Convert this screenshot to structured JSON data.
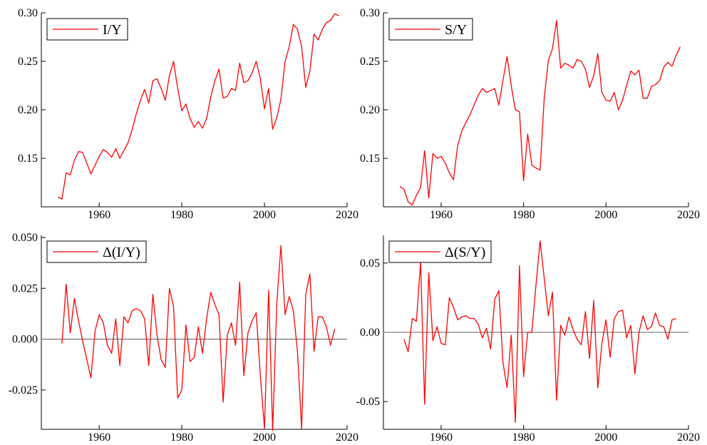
{
  "line_color": "#ff0000",
  "zero_line_color": "#7f7f7f",
  "chart_data": [
    {
      "type": "line",
      "series": [
        {
          "name": "I/Y",
          "x": [
            1950,
            1951,
            1952,
            1953,
            1954,
            1955,
            1956,
            1957,
            1958,
            1959,
            1960,
            1961,
            1962,
            1963,
            1964,
            1965,
            1966,
            1967,
            1968,
            1969,
            1970,
            1971,
            1972,
            1973,
            1974,
            1975,
            1976,
            1977,
            1978,
            1979,
            1980,
            1981,
            1982,
            1983,
            1984,
            1985,
            1986,
            1987,
            1988,
            1989,
            1990,
            1991,
            1992,
            1993,
            1994,
            1995,
            1996,
            1997,
            1998,
            1999,
            2000,
            2001,
            2002,
            2003,
            2004,
            2005,
            2006,
            2007,
            2008,
            2009,
            2010,
            2011,
            2012,
            2013,
            2014,
            2015,
            2016,
            2017,
            2018
          ],
          "y": [
            0.11,
            0.108,
            0.135,
            0.133,
            0.148,
            0.157,
            0.156,
            0.145,
            0.134,
            0.143,
            0.152,
            0.159,
            0.156,
            0.151,
            0.16,
            0.15,
            0.158,
            0.166,
            0.18,
            0.196,
            0.21,
            0.221,
            0.207,
            0.23,
            0.232,
            0.222,
            0.21,
            0.235,
            0.25,
            0.222,
            0.199,
            0.206,
            0.191,
            0.182,
            0.188,
            0.181,
            0.191,
            0.213,
            0.23,
            0.242,
            0.212,
            0.214,
            0.222,
            0.22,
            0.248,
            0.228,
            0.23,
            0.238,
            0.25,
            0.232,
            0.201,
            0.222,
            0.18,
            0.192,
            0.211,
            0.25,
            0.265,
            0.288,
            0.283,
            0.265,
            0.223,
            0.24,
            0.278,
            0.272,
            0.283,
            0.29,
            0.292,
            0.299,
            0.297
          ]
        }
      ],
      "xticks": [
        "1960",
        "1980",
        "2000",
        "2020"
      ],
      "yticks": [
        "0.15",
        "0.20",
        "0.25",
        "0.30"
      ],
      "xlim": [
        1946,
        2020
      ],
      "ylim": [
        0.1,
        0.3
      ],
      "legend": "top-left",
      "zero_line": false
    },
    {
      "type": "line",
      "series": [
        {
          "name": "S/Y",
          "x": [
            1950,
            1951,
            1952,
            1953,
            1954,
            1955,
            1956,
            1957,
            1958,
            1959,
            1960,
            1961,
            1962,
            1963,
            1964,
            1965,
            1966,
            1967,
            1968,
            1969,
            1970,
            1971,
            1972,
            1973,
            1974,
            1975,
            1976,
            1977,
            1978,
            1979,
            1980,
            1981,
            1982,
            1983,
            1984,
            1985,
            1986,
            1987,
            1988,
            1989,
            1990,
            1991,
            1992,
            1993,
            1994,
            1995,
            1996,
            1997,
            1998,
            1999,
            2000,
            2001,
            2002,
            2003,
            2004,
            2005,
            2006,
            2007,
            2008,
            2009,
            2010,
            2011,
            2012,
            2013,
            2014,
            2015,
            2016,
            2017,
            2018
          ],
          "y": [
            0.121,
            0.118,
            0.105,
            0.102,
            0.112,
            0.12,
            0.158,
            0.109,
            0.155,
            0.15,
            0.152,
            0.145,
            0.135,
            0.128,
            0.163,
            0.178,
            0.187,
            0.195,
            0.205,
            0.215,
            0.222,
            0.218,
            0.22,
            0.222,
            0.205,
            0.23,
            0.255,
            0.225,
            0.2,
            0.198,
            0.127,
            0.175,
            0.143,
            0.14,
            0.138,
            0.212,
            0.251,
            0.263,
            0.292,
            0.243,
            0.248,
            0.246,
            0.243,
            0.252,
            0.25,
            0.242,
            0.223,
            0.235,
            0.258,
            0.218,
            0.21,
            0.209,
            0.218,
            0.2,
            0.21,
            0.225,
            0.24,
            0.236,
            0.241,
            0.212,
            0.212,
            0.224,
            0.226,
            0.23,
            0.244,
            0.249,
            0.245,
            0.256,
            0.265
          ]
        }
      ],
      "xticks": [
        "1960",
        "1980",
        "2000",
        "2020"
      ],
      "yticks": [
        "0.15",
        "0.20",
        "0.25",
        "0.30"
      ],
      "xlim": [
        1946,
        2020
      ],
      "ylim": [
        0.1,
        0.3
      ],
      "legend": "top-left",
      "zero_line": false
    },
    {
      "type": "line",
      "series": [
        {
          "name": "Δ(I/Y)",
          "x": [
            1951,
            1952,
            1953,
            1954,
            1955,
            1956,
            1957,
            1958,
            1959,
            1960,
            1961,
            1962,
            1963,
            1964,
            1965,
            1966,
            1967,
            1968,
            1969,
            1970,
            1971,
            1972,
            1973,
            1974,
            1975,
            1976,
            1977,
            1978,
            1979,
            1980,
            1981,
            1982,
            1983,
            1984,
            1985,
            1986,
            1987,
            1988,
            1989,
            1990,
            1991,
            1992,
            1993,
            1994,
            1995,
            1996,
            1997,
            1998,
            1999,
            2000,
            2001,
            2002,
            2003,
            2004,
            2005,
            2006,
            2007,
            2008,
            2009,
            2010,
            2011,
            2012,
            2013,
            2014,
            2015,
            2016,
            2017
          ],
          "y": [
            -0.002,
            0.027,
            0.003,
            0.02,
            0.009,
            -0.001,
            -0.01,
            -0.019,
            0.004,
            0.012,
            0.008,
            -0.003,
            -0.007,
            0.01,
            -0.013,
            0.011,
            0.008,
            0.014,
            0.015,
            0.014,
            0.01,
            -0.013,
            0.022,
            0.002,
            -0.01,
            -0.014,
            0.025,
            0.016,
            -0.029,
            -0.025,
            0.007,
            -0.011,
            -0.009,
            0.006,
            -0.007,
            0.01,
            0.023,
            0.017,
            0.012,
            -0.031,
            0.002,
            0.008,
            -0.003,
            0.028,
            -0.018,
            0.003,
            0.009,
            0.013,
            -0.018,
            -0.044,
            0.024,
            -0.045,
            0.018,
            0.046,
            0.012,
            0.021,
            0.014,
            -0.006,
            -0.044,
            0.022,
            0.032,
            -0.006,
            0.011,
            0.011,
            0.006,
            -0.003,
            0.005
          ]
        }
      ],
      "xticks": [
        "1960",
        "1980",
        "2000",
        "2020"
      ],
      "yticks": [
        "-0.025",
        "0.000",
        "0.025",
        "0.050"
      ],
      "xlim": [
        1946,
        2020
      ],
      "ylim": [
        -0.044,
        0.05
      ],
      "legend": "top-left",
      "zero_line": true
    },
    {
      "type": "line",
      "series": [
        {
          "name": "Δ(S/Y)",
          "x": [
            1951,
            1952,
            1953,
            1954,
            1955,
            1956,
            1957,
            1958,
            1959,
            1960,
            1961,
            1962,
            1963,
            1964,
            1965,
            1966,
            1967,
            1968,
            1969,
            1970,
            1971,
            1972,
            1973,
            1974,
            1975,
            1976,
            1977,
            1978,
            1979,
            1980,
            1981,
            1982,
            1983,
            1984,
            1985,
            1986,
            1987,
            1988,
            1989,
            1990,
            1991,
            1992,
            1993,
            1994,
            1995,
            1996,
            1997,
            1998,
            1999,
            2000,
            2001,
            2002,
            2003,
            2004,
            2005,
            2006,
            2007,
            2008,
            2009,
            2010,
            2011,
            2012,
            2013,
            2014,
            2015,
            2016,
            2017
          ],
          "y": [
            -0.005,
            -0.014,
            0.01,
            0.008,
            0.051,
            -0.052,
            0.043,
            -0.006,
            0.004,
            -0.008,
            -0.009,
            0.025,
            0.018,
            0.009,
            0.011,
            0.012,
            0.01,
            0.01,
            0.006,
            -0.004,
            0.003,
            -0.012,
            0.024,
            0.03,
            -0.022,
            -0.04,
            -0.002,
            -0.065,
            0.048,
            -0.032,
            0.0,
            0.0,
            0.034,
            0.066,
            0.039,
            0.012,
            0.029,
            -0.049,
            0.005,
            -0.002,
            0.011,
            0.002,
            -0.005,
            -0.009,
            0.015,
            -0.019,
            0.023,
            -0.04,
            -0.008,
            0.009,
            -0.018,
            0.01,
            0.015,
            0.016,
            -0.004,
            0.005,
            -0.03,
            0.0,
            0.012,
            0.002,
            0.004,
            0.014,
            0.005,
            0.004,
            -0.005,
            0.009,
            0.01
          ]
        }
      ],
      "xticks": [
        "1960",
        "1980",
        "2000",
        "2020"
      ],
      "yticks": [
        "-0.05",
        "0.00",
        "0.05"
      ],
      "xlim": [
        1946,
        2020
      ],
      "ylim": [
        -0.07,
        0.07
      ],
      "legend": "top-left",
      "zero_line": true
    }
  ]
}
